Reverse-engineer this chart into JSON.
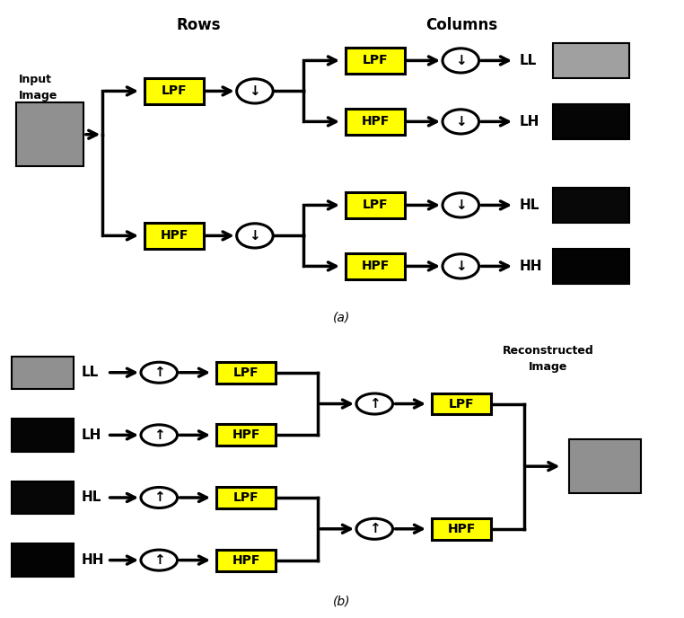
{
  "fig_width": 7.62,
  "fig_height": 6.88,
  "dpi": 100,
  "bg_color": "#ffffff",
  "box_fill": "#ffff00",
  "box_edge": "#000000",
  "circle_fill": "#ffffff",
  "circle_edge": "#000000",
  "arrow_color": "#000000",
  "text_color": "#000000",
  "diagram_a": {
    "rows_label": "Rows",
    "cols_label": "Columns",
    "caption": "(a)",
    "input_label_line1": "Input",
    "input_label_line2": "Image",
    "outputs": [
      "LL",
      "LH",
      "HL",
      "HH"
    ]
  },
  "diagram_b": {
    "caption": "(b)",
    "inputs": [
      "LL",
      "LH",
      "HL",
      "HH"
    ],
    "stage1_filters": [
      "LPF",
      "HPF",
      "LPF",
      "HPF"
    ],
    "stage2_filters": [
      "LPF",
      "HPF"
    ],
    "output_label_line1": "Reconstructed",
    "output_label_line2": "Image"
  }
}
